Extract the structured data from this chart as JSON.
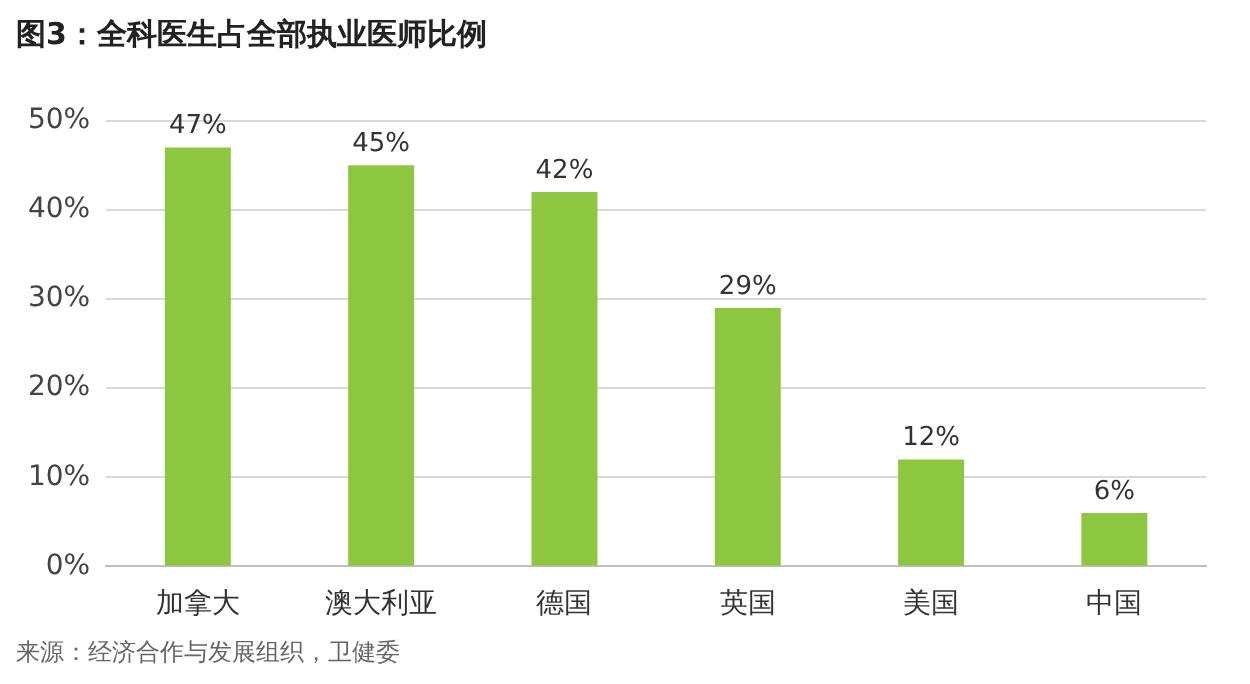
{
  "chart_data": {
    "type": "bar",
    "title": "图3：全科医生占全部执业医师比例",
    "categories": [
      "加拿大",
      "澳大利亚",
      "德国",
      "英国",
      "美国",
      "中国"
    ],
    "values": [
      47,
      45,
      42,
      29,
      12,
      6
    ],
    "value_labels": [
      "47%",
      "45%",
      "42%",
      "29%",
      "12%",
      "6%"
    ],
    "color": "#8dc63f",
    "ylim": [
      0,
      50
    ],
    "yticks": [
      {
        "value": 0,
        "label": "0%"
      },
      {
        "value": 10,
        "label": "10%"
      },
      {
        "value": 20,
        "label": "20%"
      },
      {
        "value": 30,
        "label": "30%"
      },
      {
        "value": 40,
        "label": "40%"
      },
      {
        "value": 50,
        "label": "50%"
      }
    ],
    "grid": "y",
    "annotations": [
      "来源：经济合作与发展组织，卫健委"
    ]
  }
}
